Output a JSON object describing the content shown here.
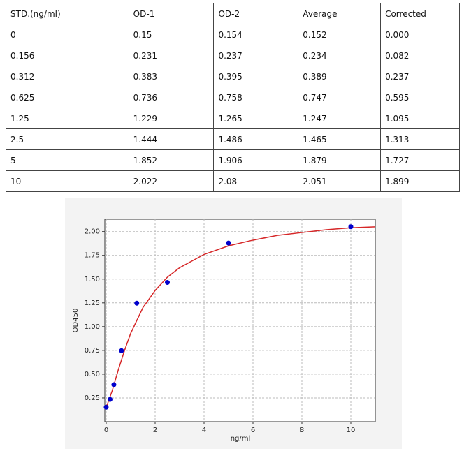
{
  "table": {
    "header": [
      "STD.(ng/ml)",
      "OD-1",
      "OD-2",
      "Average",
      "Corrected"
    ],
    "rows": [
      [
        "0",
        "0.15",
        "0.154",
        "0.152",
        "0.000"
      ],
      [
        "0.156",
        "0.231",
        "0.237",
        "0.234",
        "0.082"
      ],
      [
        "0.312",
        "0.383",
        "0.395",
        "0.389",
        "0.237"
      ],
      [
        "0.625",
        "0.736",
        "0.758",
        "0.747",
        "0.595"
      ],
      [
        "1.25",
        "1.229",
        "1.265",
        "1.247",
        "1.095"
      ],
      [
        "2.5",
        "1.444",
        "1.486",
        "1.465",
        "1.313"
      ],
      [
        "5",
        "1.852",
        "1.906",
        "1.879",
        "1.727"
      ],
      [
        "10",
        "2.022",
        "2.08",
        "2.051",
        "1.899"
      ]
    ]
  },
  "chart_data": {
    "type": "scatter",
    "xlabel": "ng/ml",
    "ylabel": "OD450",
    "x": [
      0,
      0.156,
      0.312,
      0.625,
      1.25,
      2.5,
      5,
      10
    ],
    "series": [
      {
        "color": "#0000cc",
        "values": [
          0.152,
          0.234,
          0.389,
          0.747,
          1.247,
          1.465,
          1.879,
          2.051
        ]
      }
    ],
    "curve": {
      "color": "#d62728",
      "x": [
        0,
        0.25,
        0.5,
        0.75,
        1,
        1.5,
        2,
        2.5,
        3,
        4,
        5,
        6,
        7,
        8,
        9,
        10,
        11
      ],
      "values": [
        0.15,
        0.33,
        0.55,
        0.75,
        0.93,
        1.2,
        1.38,
        1.52,
        1.62,
        1.76,
        1.85,
        1.91,
        1.96,
        1.99,
        2.02,
        2.04,
        2.05
      ]
    },
    "xlim": [
      0,
      11
    ],
    "ylim": [
      0,
      2.13
    ],
    "xticks": [
      0,
      2,
      4,
      6,
      8,
      10
    ],
    "yticks": [
      0.25,
      {
        "value": 0.5,
        "label": "0.50"
      },
      0.75,
      {
        "value": 1,
        "label": "1.00"
      },
      1.25,
      {
        "value": 1.5,
        "label": "1.50"
      },
      1.75,
      {
        "value": 2,
        "label": "2.00"
      }
    ],
    "grid": true
  }
}
